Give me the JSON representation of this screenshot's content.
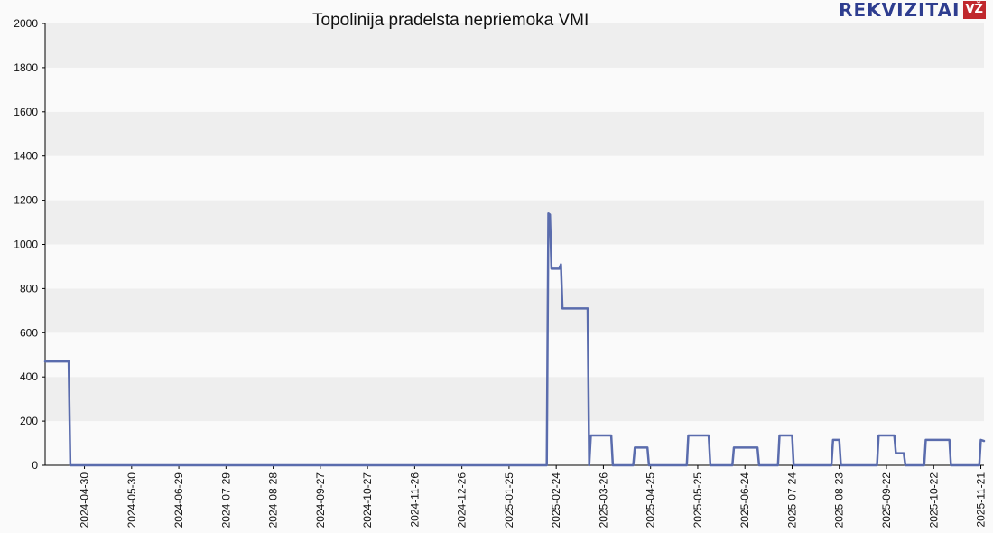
{
  "title": "Topolinija pradelsta nepriemoka VMI",
  "logo": {
    "text": "REKVIZITAI",
    "badge": "VŽ"
  },
  "colors": {
    "line": "#5a6cad",
    "band_dark": "#eeeeee",
    "band_light": "#fafafa",
    "axis": "#000000"
  },
  "chart_data": {
    "type": "line",
    "title": "Topolinija pradelsta nepriemoka VMI",
    "xlabel": "",
    "ylabel": "",
    "ylim": [
      0,
      2000
    ],
    "yticks": [
      0,
      200,
      400,
      600,
      800,
      1000,
      1200,
      1400,
      1600,
      1800,
      2000
    ],
    "xlim": [
      "2024-04-05",
      "2025-11-23"
    ],
    "xticks": [
      "2024-04-30",
      "2024-05-30",
      "2024-06-29",
      "2024-07-29",
      "2024-08-28",
      "2024-09-27",
      "2024-10-27",
      "2024-11-26",
      "2024-12-26",
      "2025-01-25",
      "2025-02-24",
      "2025-03-26",
      "2025-04-25",
      "2025-05-25",
      "2025-06-24",
      "2025-07-24",
      "2025-08-23",
      "2025-09-22",
      "2025-10-22",
      "2025-11-21"
    ],
    "grid": "horizontal bands",
    "series": [
      {
        "points": [
          [
            "2024-04-05",
            470
          ],
          [
            "2024-04-20",
            470
          ],
          [
            "2024-04-21",
            0
          ],
          [
            "2025-02-18",
            0
          ],
          [
            "2025-02-19",
            1140
          ],
          [
            "2025-02-20",
            1135
          ],
          [
            "2025-02-21",
            890
          ],
          [
            "2025-02-26",
            890
          ],
          [
            "2025-02-27",
            910
          ],
          [
            "2025-02-28",
            710
          ],
          [
            "2025-03-16",
            710
          ],
          [
            "2025-03-17",
            0
          ],
          [
            "2025-03-18",
            135
          ],
          [
            "2025-03-31",
            135
          ],
          [
            "2025-04-01",
            0
          ],
          [
            "2025-04-14",
            0
          ],
          [
            "2025-04-15",
            80
          ],
          [
            "2025-04-23",
            80
          ],
          [
            "2025-04-24",
            0
          ],
          [
            "2025-05-18",
            0
          ],
          [
            "2025-05-19",
            135
          ],
          [
            "2025-06-01",
            135
          ],
          [
            "2025-06-02",
            0
          ],
          [
            "2025-06-16",
            0
          ],
          [
            "2025-06-17",
            80
          ],
          [
            "2025-07-02",
            80
          ],
          [
            "2025-07-03",
            0
          ],
          [
            "2025-07-15",
            0
          ],
          [
            "2025-07-16",
            135
          ],
          [
            "2025-07-24",
            135
          ],
          [
            "2025-07-25",
            0
          ],
          [
            "2025-08-18",
            0
          ],
          [
            "2025-08-19",
            115
          ],
          [
            "2025-08-23",
            115
          ],
          [
            "2025-08-24",
            0
          ],
          [
            "2025-09-16",
            0
          ],
          [
            "2025-09-17",
            135
          ],
          [
            "2025-09-27",
            135
          ],
          [
            "2025-09-28",
            55
          ],
          [
            "2025-10-03",
            55
          ],
          [
            "2025-10-04",
            0
          ],
          [
            "2025-10-16",
            0
          ],
          [
            "2025-10-17",
            115
          ],
          [
            "2025-11-01",
            115
          ],
          [
            "2025-11-02",
            0
          ],
          [
            "2025-11-20",
            0
          ],
          [
            "2025-11-21",
            115
          ],
          [
            "2025-11-23",
            110
          ]
        ]
      }
    ]
  }
}
